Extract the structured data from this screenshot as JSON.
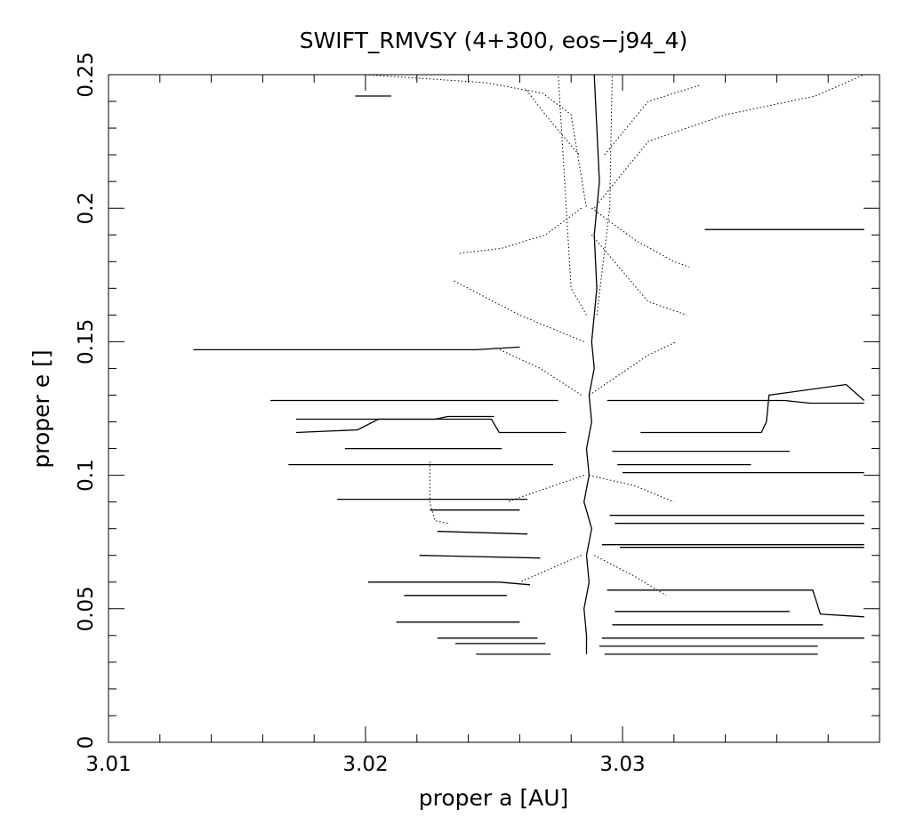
{
  "chart_data": {
    "type": "scatter",
    "title": "SWIFT_RMVSY (4+300, eos−j94_4)",
    "xlabel": "proper a [AU]",
    "ylabel": "proper e []",
    "xlim": [
      3.01,
      3.04
    ],
    "ylim": [
      0,
      0.25
    ],
    "x_ticks": [
      3.01,
      3.02,
      3.03
    ],
    "x_tick_labels": [
      "3.01",
      "3.02",
      "3.03"
    ],
    "y_ticks": [
      0,
      0.05,
      0.1,
      0.15,
      0.2,
      0.25
    ],
    "y_tick_labels": [
      "0",
      "0.05",
      "0.1",
      "0.15",
      "0.2",
      "0.25"
    ],
    "grid": false,
    "legend": "none",
    "line_color": "#000000",
    "series": [
      {
        "style": "solid",
        "x": [
          3.0286,
          3.0286,
          3.0285,
          3.0287,
          3.0286,
          3.0288,
          3.0285,
          3.0287,
          3.0286,
          3.0288,
          3.0287,
          3.0289,
          3.0288,
          3.029,
          3.0289,
          3.0291,
          3.029,
          3.0289
        ],
        "y": [
          0.033,
          0.04,
          0.05,
          0.06,
          0.07,
          0.08,
          0.09,
          0.1,
          0.11,
          0.12,
          0.13,
          0.14,
          0.15,
          0.17,
          0.19,
          0.21,
          0.23,
          0.25
        ]
      },
      {
        "style": "solid",
        "x": [
          3.0133,
          3.0243,
          3.026
        ],
        "y": [
          0.147,
          0.147,
          0.148
        ]
      },
      {
        "style": "solid",
        "x": [
          3.0163,
          3.0275
        ],
        "y": [
          0.128,
          0.128
        ]
      },
      {
        "style": "solid",
        "x": [
          3.0173,
          3.0227,
          3.0232,
          3.025
        ],
        "y": [
          0.121,
          0.121,
          0.122,
          0.122
        ]
      },
      {
        "style": "solid",
        "x": [
          3.0173,
          3.0197,
          3.0205,
          3.0249,
          3.0252,
          3.0278
        ],
        "y": [
          0.116,
          0.117,
          0.121,
          0.121,
          0.116,
          0.116
        ]
      },
      {
        "style": "solid",
        "x": [
          3.0192,
          3.0253
        ],
        "y": [
          0.11,
          0.11
        ]
      },
      {
        "style": "solid",
        "x": [
          3.017,
          3.0273
        ],
        "y": [
          0.104,
          0.104
        ]
      },
      {
        "style": "solid",
        "x": [
          3.0189,
          3.0263
        ],
        "y": [
          0.091,
          0.091
        ]
      },
      {
        "style": "solid",
        "x": [
          3.0201,
          3.0252,
          3.0264
        ],
        "y": [
          0.06,
          0.06,
          0.059
        ]
      },
      {
        "style": "solid",
        "x": [
          3.0215,
          3.0255
        ],
        "y": [
          0.055,
          0.055
        ]
      },
      {
        "style": "solid",
        "x": [
          3.0212,
          3.026
        ],
        "y": [
          0.045,
          0.045
        ]
      },
      {
        "style": "solid",
        "x": [
          3.0235,
          3.027
        ],
        "y": [
          0.037,
          0.037
        ]
      },
      {
        "style": "solid",
        "x": [
          3.0228,
          3.0267
        ],
        "y": [
          0.039,
          0.039
        ]
      },
      {
        "style": "solid",
        "x": [
          3.0243,
          3.0272
        ],
        "y": [
          0.033,
          0.033
        ]
      },
      {
        "style": "solid",
        "x": [
          3.0221,
          3.0268
        ],
        "y": [
          0.07,
          0.069
        ]
      },
      {
        "style": "solid",
        "x": [
          3.0225,
          3.026
        ],
        "y": [
          0.087,
          0.087
        ]
      },
      {
        "style": "solid",
        "x": [
          3.0228,
          3.0263
        ],
        "y": [
          0.079,
          0.078
        ]
      },
      {
        "style": "solid",
        "x": [
          3.0294,
          3.0363,
          3.0373,
          3.0394
        ],
        "y": [
          0.128,
          0.128,
          0.127,
          0.127
        ]
      },
      {
        "style": "solid",
        "x": [
          3.0307,
          3.0354,
          3.0356,
          3.0357,
          3.0387,
          3.0394
        ],
        "y": [
          0.116,
          0.116,
          0.12,
          0.13,
          0.134,
          0.128
        ]
      },
      {
        "style": "solid",
        "x": [
          3.0296,
          3.0365
        ],
        "y": [
          0.109,
          0.109
        ]
      },
      {
        "style": "solid",
        "x": [
          3.0298,
          3.035
        ],
        "y": [
          0.104,
          0.104
        ]
      },
      {
        "style": "solid",
        "x": [
          3.03,
          3.0394
        ],
        "y": [
          0.101,
          0.101
        ]
      },
      {
        "style": "solid",
        "x": [
          3.0295,
          3.0394
        ],
        "y": [
          0.085,
          0.085
        ]
      },
      {
        "style": "solid",
        "x": [
          3.0297,
          3.0394
        ],
        "y": [
          0.082,
          0.082
        ]
      },
      {
        "style": "solid",
        "x": [
          3.0292,
          3.0394
        ],
        "y": [
          0.074,
          0.074
        ]
      },
      {
        "style": "solid",
        "x": [
          3.0299,
          3.0394
        ],
        "y": [
          0.073,
          0.073
        ]
      },
      {
        "style": "solid",
        "x": [
          3.0294,
          3.0374,
          3.0377,
          3.0394
        ],
        "y": [
          0.057,
          0.057,
          0.048,
          0.047
        ]
      },
      {
        "style": "solid",
        "x": [
          3.0296,
          3.0378
        ],
        "y": [
          0.044,
          0.044
        ]
      },
      {
        "style": "solid",
        "x": [
          3.0292,
          3.0394
        ],
        "y": [
          0.039,
          0.039
        ]
      },
      {
        "style": "solid",
        "x": [
          3.0291,
          3.0376
        ],
        "y": [
          0.036,
          0.036
        ]
      },
      {
        "style": "solid",
        "x": [
          3.0293,
          3.0376
        ],
        "y": [
          0.033,
          0.033
        ]
      },
      {
        "style": "solid",
        "x": [
          3.0332,
          3.0394
        ],
        "y": [
          0.192,
          0.192
        ]
      },
      {
        "style": "solid",
        "x": [
          3.0297,
          3.0365
        ],
        "y": [
          0.049,
          0.049
        ]
      },
      {
        "style": "solid",
        "x": [
          3.0196,
          3.021
        ],
        "y": [
          0.242,
          0.242
        ]
      },
      {
        "style": "dotted",
        "x": [
          3.02,
          3.0247,
          3.0269,
          3.028,
          3.0286
        ],
        "y": [
          0.25,
          0.247,
          0.243,
          0.235,
          0.2
        ]
      },
      {
        "style": "dotted",
        "x": [
          3.0289,
          3.031,
          3.034,
          3.0375,
          3.0394
        ],
        "y": [
          0.2,
          0.225,
          0.235,
          0.242,
          0.25
        ]
      },
      {
        "style": "dotted",
        "x": [
          3.0288,
          3.031,
          3.0325
        ],
        "y": [
          0.19,
          0.165,
          0.16
        ]
      },
      {
        "style": "dotted",
        "x": [
          3.0288,
          3.0305,
          3.032,
          3.0326
        ],
        "y": [
          0.2,
          0.188,
          0.18,
          0.178
        ]
      },
      {
        "style": "dotted",
        "x": [
          3.0284,
          3.027,
          3.0253,
          3.0236
        ],
        "y": [
          0.2,
          0.19,
          0.185,
          0.183
        ]
      },
      {
        "style": "dotted",
        "x": [
          3.0285,
          3.026,
          3.0234
        ],
        "y": [
          0.15,
          0.16,
          0.173
        ]
      },
      {
        "style": "dotted",
        "x": [
          3.0287,
          3.0305,
          3.032
        ],
        "y": [
          0.1,
          0.096,
          0.09
        ]
      },
      {
        "style": "dotted",
        "x": [
          3.0285,
          3.027,
          3.0255
        ],
        "y": [
          0.1,
          0.095,
          0.09
        ]
      },
      {
        "style": "dotted",
        "x": [
          3.0286,
          3.028,
          3.0275
        ],
        "y": [
          0.16,
          0.17,
          0.25
        ]
      },
      {
        "style": "dotted",
        "x": [
          3.029,
          3.0295,
          3.0296
        ],
        "y": [
          0.16,
          0.2,
          0.25
        ]
      },
      {
        "style": "dotted",
        "x": [
          3.0287,
          3.031,
          3.0321
        ],
        "y": [
          0.13,
          0.145,
          0.15
        ]
      },
      {
        "style": "dotted",
        "x": [
          3.0284,
          3.0268,
          3.025
        ],
        "y": [
          0.13,
          0.14,
          0.148
        ]
      },
      {
        "style": "dotted",
        "x": [
          3.0293,
          3.031,
          3.033
        ],
        "y": [
          0.22,
          0.24,
          0.246
        ]
      },
      {
        "style": "dotted",
        "x": [
          3.0283,
          3.027,
          3.0262
        ],
        "y": [
          0.22,
          0.235,
          0.245
        ]
      },
      {
        "style": "dotted",
        "x": [
          3.0289,
          3.0305,
          3.0317
        ],
        "y": [
          0.07,
          0.062,
          0.055
        ]
      },
      {
        "style": "dotted",
        "x": [
          3.0284,
          3.0272,
          3.026
        ],
        "y": [
          0.07,
          0.065,
          0.06
        ]
      },
      {
        "style": "dotted",
        "x": [
          3.0225,
          3.0225,
          3.0227,
          3.0232
        ],
        "y": [
          0.105,
          0.09,
          0.083,
          0.082
        ]
      }
    ]
  }
}
